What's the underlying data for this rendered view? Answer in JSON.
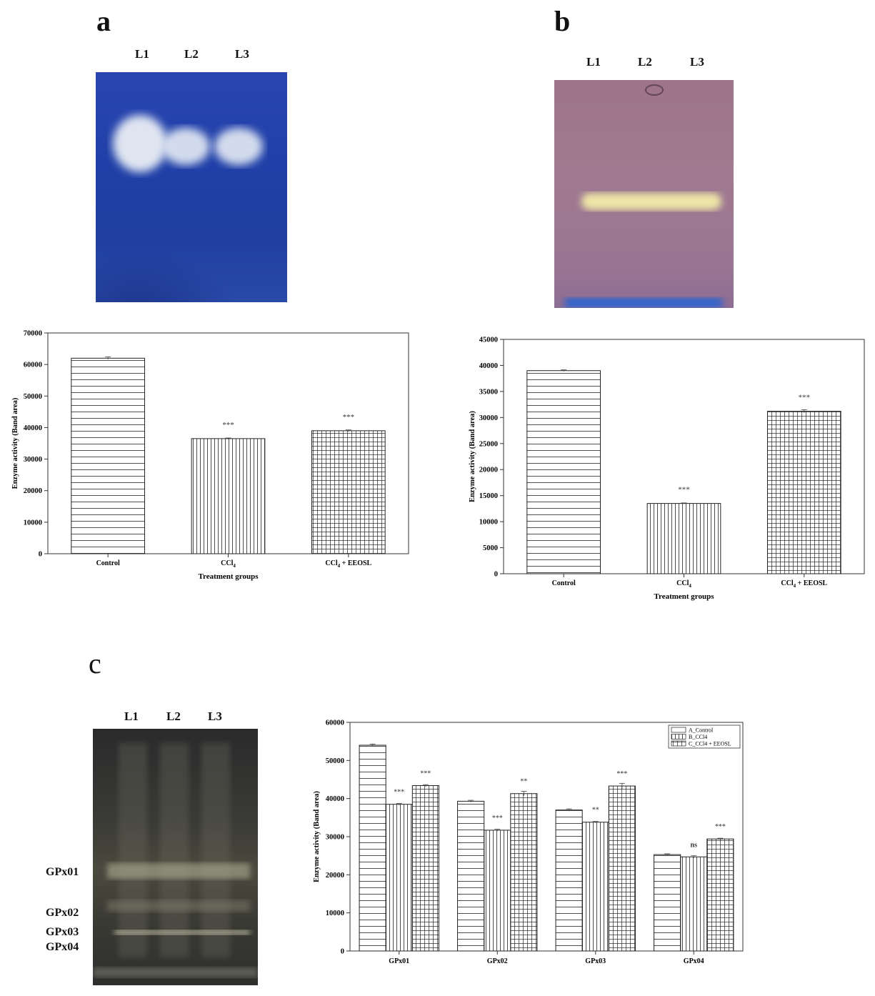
{
  "panels": {
    "a": {
      "letter": "a",
      "lanes": [
        "L1",
        "L2",
        "L3"
      ],
      "gel_color": "#1f3fa8"
    },
    "b": {
      "letter": "b",
      "lanes": [
        "L1",
        "L2",
        "L3"
      ],
      "gel_color": "#9b6f86"
    },
    "c": {
      "letter": "c",
      "lanes": [
        "L1",
        "L2",
        "L3"
      ],
      "gel_color": "#2b2b2c",
      "band_labels": [
        "GPx01",
        "GPx02",
        "GPx03",
        "GPx04"
      ]
    }
  },
  "chart_data": [
    {
      "type": "bar",
      "categories": [
        "Control",
        "CCl4",
        "CCl4 + EEOSL"
      ],
      "category_labels": [
        {
          "main": "Control",
          "sub": ""
        },
        {
          "main": "CCl",
          "sub": "4"
        },
        {
          "main": "CCl",
          "sub": "4",
          "rest": " + EEOSL"
        }
      ],
      "values": [
        62000,
        36500,
        39000
      ],
      "errors": [
        400,
        200,
        250
      ],
      "significance": [
        "",
        "***",
        "***"
      ],
      "patterns": [
        "hlines",
        "vlines",
        "grid"
      ],
      "xlabel": "Treatment groups",
      "ylabel": "Enzyme activity (Band area)",
      "ylim": [
        0,
        70000
      ],
      "yticks": [
        0,
        10000,
        20000,
        30000,
        40000,
        50000,
        60000,
        70000
      ],
      "grid": false,
      "legend": false
    },
    {
      "type": "bar",
      "categories": [
        "Control",
        "CCl4",
        "CCl4 + EEOSL"
      ],
      "category_labels": [
        {
          "main": "Control",
          "sub": ""
        },
        {
          "main": "CCl",
          "sub": "4"
        },
        {
          "main": "CCl",
          "sub": "4",
          "rest": " + EEOSL"
        }
      ],
      "values": [
        39000,
        13500,
        31200
      ],
      "errors": [
        150,
        100,
        300
      ],
      "significance": [
        "",
        "***",
        "***"
      ],
      "patterns": [
        "hlines",
        "vlines",
        "grid"
      ],
      "xlabel": "Treatment groups",
      "ylabel": "Enzyme activity (Band area)",
      "ylim": [
        0,
        45000
      ],
      "yticks": [
        0,
        5000,
        10000,
        15000,
        20000,
        25000,
        30000,
        35000,
        40000,
        45000
      ],
      "grid": false,
      "legend": false
    },
    {
      "type": "bar",
      "categories": [
        "GPx01",
        "GPx02",
        "GPx03",
        "GPx04"
      ],
      "series": [
        {
          "name": "A_Control",
          "values": [
            54000,
            39300,
            37000,
            25300
          ],
          "errors": [
            300,
            250,
            300,
            200
          ],
          "pattern": "hlines"
        },
        {
          "name": "B_CCl4",
          "values": [
            38500,
            31700,
            33800,
            24700
          ],
          "errors": [
            200,
            250,
            200,
            300
          ],
          "pattern": "vlines"
        },
        {
          "name": "C_CCl4 + EEOSL",
          "values": [
            43400,
            41300,
            43300,
            29400
          ],
          "errors": [
            250,
            600,
            700,
            200
          ],
          "pattern": "grid"
        }
      ],
      "significance": [
        [
          "",
          "***",
          "***"
        ],
        [
          "",
          "***",
          "**"
        ],
        [
          "",
          "**",
          "***"
        ],
        [
          "",
          "ns",
          "***"
        ]
      ],
      "xlabel": "",
      "ylabel": "Enzyme activity (Band area)",
      "ylim": [
        0,
        60000
      ],
      "yticks": [
        0,
        10000,
        20000,
        30000,
        40000,
        50000,
        60000
      ],
      "grid": false,
      "legend": "top-right"
    }
  ]
}
